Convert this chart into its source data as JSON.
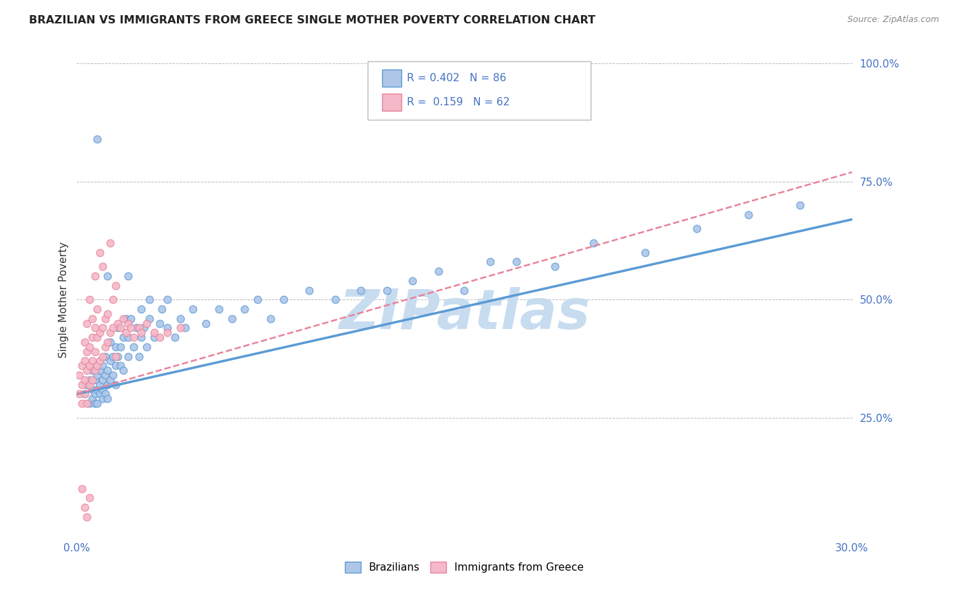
{
  "title": "BRAZILIAN VS IMMIGRANTS FROM GREECE SINGLE MOTHER POVERTY CORRELATION CHART",
  "source": "Source: ZipAtlas.com",
  "ylabel": "Single Mother Poverty",
  "xlim": [
    0.0,
    0.3
  ],
  "ylim": [
    0.0,
    1.0
  ],
  "yticks": [
    0.0,
    0.25,
    0.5,
    0.75,
    1.0
  ],
  "ytick_labels": [
    "",
    "25.0%",
    "50.0%",
    "75.0%",
    "100.0%"
  ],
  "xticks": [
    0.0,
    0.05,
    0.1,
    0.15,
    0.2,
    0.25,
    0.3
  ],
  "xtick_labels": [
    "0.0%",
    "",
    "",
    "",
    "",
    "",
    "30.0%"
  ],
  "watermark": "ZIPatlas",
  "blue_line_x": [
    0.0,
    0.3
  ],
  "blue_line_y": [
    0.3,
    0.67
  ],
  "pink_line_x": [
    0.0,
    0.3
  ],
  "pink_line_y": [
    0.3,
    0.77
  ],
  "blue_color": "#5B9BD5",
  "pink_color": "#E8849A",
  "blue_fill": "#AEC6E8",
  "pink_fill": "#F4B8C8",
  "title_color": "#222222",
  "axis_color": "#4472C4",
  "watermark_color": "#C8DCF0",
  "grid_color": "#BBBBBB",
  "blue_scatter_x": [
    0.003,
    0.004,
    0.005,
    0.005,
    0.006,
    0.006,
    0.006,
    0.007,
    0.007,
    0.007,
    0.008,
    0.008,
    0.008,
    0.009,
    0.009,
    0.009,
    0.01,
    0.01,
    0.01,
    0.01,
    0.011,
    0.011,
    0.011,
    0.012,
    0.012,
    0.012,
    0.013,
    0.013,
    0.013,
    0.014,
    0.014,
    0.015,
    0.015,
    0.015,
    0.016,
    0.016,
    0.017,
    0.017,
    0.018,
    0.018,
    0.019,
    0.02,
    0.02,
    0.021,
    0.022,
    0.023,
    0.024,
    0.025,
    0.025,
    0.026,
    0.027,
    0.028,
    0.03,
    0.032,
    0.033,
    0.035,
    0.038,
    0.04,
    0.042,
    0.045,
    0.05,
    0.055,
    0.06,
    0.065,
    0.07,
    0.075,
    0.08,
    0.09,
    0.1,
    0.11,
    0.12,
    0.13,
    0.14,
    0.15,
    0.16,
    0.17,
    0.185,
    0.2,
    0.22,
    0.24,
    0.26,
    0.28,
    0.012,
    0.02,
    0.028,
    0.035,
    0.008
  ],
  "blue_scatter_y": [
    0.3,
    0.32,
    0.28,
    0.33,
    0.31,
    0.35,
    0.29,
    0.3,
    0.33,
    0.28,
    0.31,
    0.34,
    0.28,
    0.32,
    0.3,
    0.35,
    0.29,
    0.33,
    0.31,
    0.36,
    0.34,
    0.3,
    0.38,
    0.32,
    0.35,
    0.29,
    0.33,
    0.37,
    0.41,
    0.34,
    0.38,
    0.36,
    0.4,
    0.32,
    0.38,
    0.44,
    0.36,
    0.4,
    0.35,
    0.42,
    0.46,
    0.38,
    0.42,
    0.46,
    0.4,
    0.44,
    0.38,
    0.42,
    0.48,
    0.44,
    0.4,
    0.46,
    0.42,
    0.45,
    0.48,
    0.44,
    0.42,
    0.46,
    0.44,
    0.48,
    0.45,
    0.48,
    0.46,
    0.48,
    0.5,
    0.46,
    0.5,
    0.52,
    0.5,
    0.52,
    0.52,
    0.54,
    0.56,
    0.52,
    0.58,
    0.58,
    0.57,
    0.62,
    0.6,
    0.65,
    0.68,
    0.7,
    0.55,
    0.55,
    0.5,
    0.5,
    0.84
  ],
  "pink_scatter_x": [
    0.001,
    0.001,
    0.002,
    0.002,
    0.002,
    0.003,
    0.003,
    0.003,
    0.003,
    0.004,
    0.004,
    0.004,
    0.004,
    0.005,
    0.005,
    0.005,
    0.005,
    0.006,
    0.006,
    0.006,
    0.006,
    0.007,
    0.007,
    0.007,
    0.007,
    0.008,
    0.008,
    0.008,
    0.009,
    0.009,
    0.009,
    0.01,
    0.01,
    0.01,
    0.011,
    0.011,
    0.012,
    0.012,
    0.013,
    0.013,
    0.014,
    0.014,
    0.015,
    0.015,
    0.016,
    0.017,
    0.018,
    0.019,
    0.02,
    0.021,
    0.022,
    0.024,
    0.025,
    0.027,
    0.03,
    0.032,
    0.035,
    0.04,
    0.002,
    0.003,
    0.004,
    0.005
  ],
  "pink_scatter_y": [
    0.3,
    0.34,
    0.32,
    0.36,
    0.28,
    0.33,
    0.37,
    0.3,
    0.41,
    0.35,
    0.39,
    0.45,
    0.28,
    0.32,
    0.36,
    0.4,
    0.5,
    0.33,
    0.37,
    0.42,
    0.46,
    0.35,
    0.39,
    0.44,
    0.55,
    0.36,
    0.42,
    0.48,
    0.37,
    0.43,
    0.6,
    0.38,
    0.44,
    0.57,
    0.4,
    0.46,
    0.41,
    0.47,
    0.43,
    0.62,
    0.44,
    0.5,
    0.38,
    0.53,
    0.45,
    0.44,
    0.46,
    0.43,
    0.45,
    0.44,
    0.42,
    0.44,
    0.43,
    0.45,
    0.43,
    0.42,
    0.43,
    0.44,
    0.1,
    0.06,
    0.04,
    0.08
  ]
}
